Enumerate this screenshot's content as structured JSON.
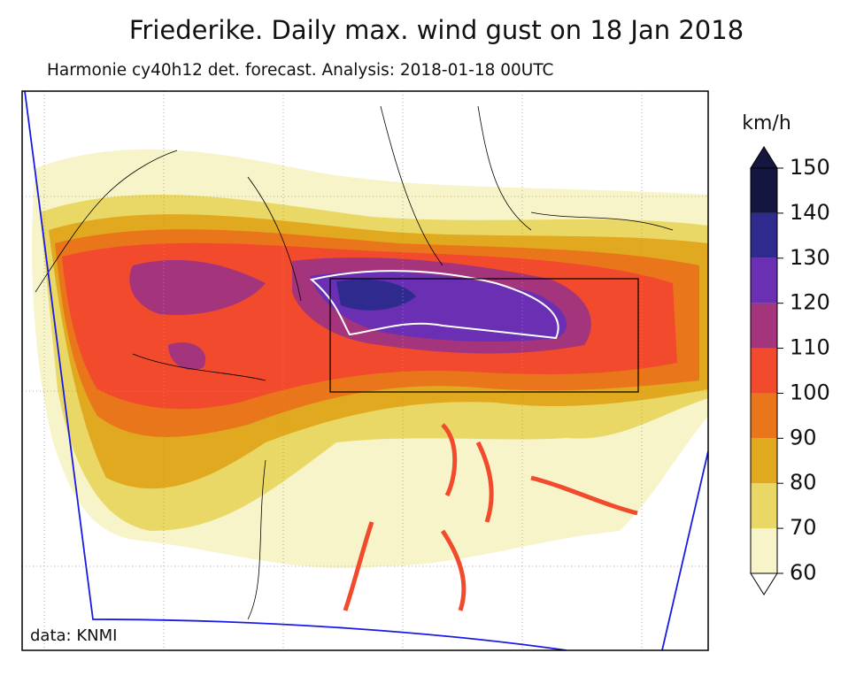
{
  "title": "Friederike. Daily max. wind gust on 18 Jan 2018",
  "subtitle": "Harmonie cy40h12 det. forecast. Analysis: 2018-01-18 00UTC",
  "colorbar": {
    "label": "km/h",
    "range": [
      60,
      150
    ],
    "ticks": [
      60,
      70,
      80,
      90,
      100,
      110,
      120,
      130,
      140,
      150
    ],
    "colors": [
      "#f6f4c8",
      "#e9d866",
      "#e1a91f",
      "#e9761b",
      "#f24a2c",
      "#a4347c",
      "#6a2fb2",
      "#2f2b8e",
      "#15163f"
    ],
    "extend": "both"
  },
  "credit": "data: KNMI"
}
